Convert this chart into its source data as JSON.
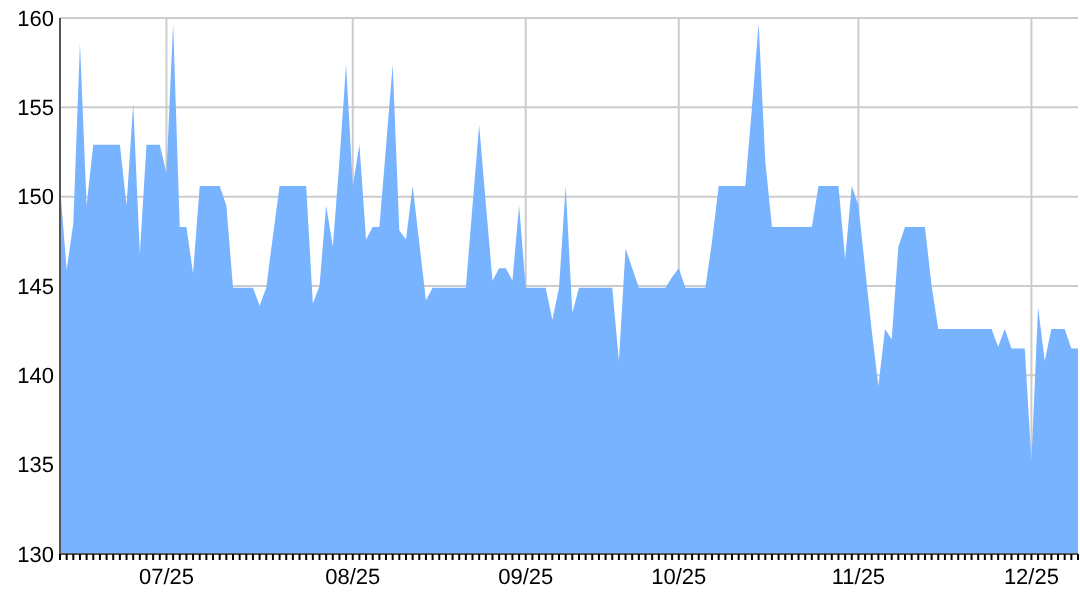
{
  "chart_data": {
    "type": "area",
    "categories": [
      null,
      null,
      null,
      null,
      null,
      null,
      null,
      null,
      null,
      null,
      null,
      null,
      null,
      null,
      null,
      null,
      "07/25",
      null,
      null,
      null,
      null,
      null,
      null,
      null,
      null,
      null,
      null,
      null,
      null,
      null,
      null,
      null,
      null,
      null,
      null,
      null,
      null,
      null,
      null,
      null,
      null,
      null,
      null,
      null,
      "08/25",
      null,
      null,
      null,
      null,
      null,
      null,
      null,
      null,
      null,
      null,
      null,
      null,
      null,
      null,
      null,
      null,
      null,
      null,
      null,
      null,
      null,
      null,
      null,
      null,
      null,
      "09/25",
      null,
      null,
      null,
      null,
      null,
      null,
      null,
      null,
      null,
      null,
      null,
      null,
      null,
      null,
      null,
      null,
      null,
      null,
      null,
      null,
      null,
      null,
      "10/25",
      null,
      null,
      null,
      null,
      null,
      null,
      null,
      null,
      null,
      null,
      null,
      null,
      null,
      null,
      null,
      null,
      null,
      null,
      null,
      null,
      null,
      null,
      null,
      null,
      null,
      null,
      "11/25",
      null,
      null,
      null,
      null,
      null,
      null,
      null,
      null,
      null,
      null,
      null,
      null,
      null,
      null,
      null,
      null,
      null,
      null,
      null,
      null,
      null,
      null,
      null,
      null,
      null,
      "12/25",
      null,
      null,
      null,
      null,
      null,
      null,
      null
    ],
    "values": [
      150.6,
      145.9,
      148.5,
      158.6,
      149.5,
      152.9,
      152.9,
      152.9,
      152.9,
      152.9,
      149.5,
      155.2,
      146.8,
      152.9,
      152.9,
      152.9,
      151.3,
      159.7,
      148.3,
      148.3,
      145.7,
      150.6,
      150.6,
      150.6,
      150.6,
      149.5,
      144.9,
      144.9,
      144.9,
      144.9,
      143.9,
      144.9,
      147.8,
      150.6,
      150.6,
      150.6,
      150.6,
      150.6,
      144.0,
      145.0,
      149.5,
      147.2,
      152.0,
      157.4,
      150.6,
      152.9,
      147.6,
      148.3,
      148.3,
      152.8,
      157.4,
      148.1,
      147.6,
      150.6,
      147.4,
      144.2,
      144.9,
      144.9,
      144.9,
      144.9,
      144.9,
      144.9,
      149.5,
      154.0,
      149.6,
      145.3,
      146.0,
      146.0,
      145.3,
      149.5,
      144.9,
      144.9,
      144.9,
      144.9,
      143.1,
      144.9,
      150.6,
      143.5,
      144.9,
      144.9,
      144.9,
      144.9,
      144.9,
      144.9,
      140.8,
      147.1,
      146.0,
      144.9,
      144.9,
      144.9,
      144.9,
      144.9,
      145.5,
      146.0,
      144.9,
      144.9,
      144.9,
      144.9,
      147.5,
      150.6,
      150.6,
      150.6,
      150.6,
      150.6,
      155.0,
      159.7,
      152.0,
      148.3,
      148.3,
      148.3,
      148.3,
      148.3,
      148.3,
      148.3,
      150.6,
      150.6,
      150.6,
      150.6,
      146.5,
      150.6,
      149.5,
      146.0,
      142.5,
      139.4,
      142.6,
      142.0,
      147.2,
      148.3,
      148.3,
      148.3,
      148.3,
      145.0,
      142.6,
      142.6,
      142.6,
      142.6,
      142.6,
      142.6,
      142.6,
      142.6,
      142.6,
      141.6,
      142.6,
      141.5,
      141.5,
      141.5,
      135.2,
      143.8,
      140.8,
      142.6,
      142.6,
      142.6,
      141.5,
      141.5
    ],
    "color": "#77b3ff",
    "ylim": [
      130,
      160
    ],
    "yticks": [
      130,
      135,
      140,
      145,
      150,
      155,
      160
    ],
    "grid": true
  }
}
